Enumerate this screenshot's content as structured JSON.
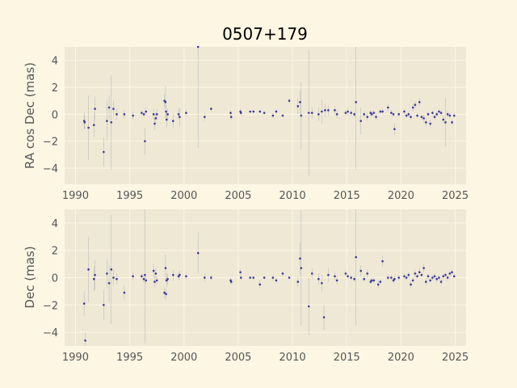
{
  "chart_data": {
    "title": "0507+179",
    "type": "scatter",
    "xlim": [
      1989.0,
      2026.0
    ],
    "x_ticks": [
      1990,
      1995,
      2000,
      2005,
      2010,
      2015,
      2020,
      2025
    ],
    "grid": true,
    "colors": {
      "background": "#fdf6e3",
      "axes": "#eee8d5",
      "points": "#3a3a99",
      "errorbars": "#9a9aa6"
    },
    "panels": [
      {
        "name": "ra-panel",
        "ylabel": "RA cos Dec (mas)",
        "ylim": [
          -5.2,
          5.0
        ],
        "y_ticks": [
          -4,
          -2,
          0,
          2,
          4
        ],
        "points": [
          {
            "x": 1990.8,
            "y": -0.5,
            "e": 0.6
          },
          {
            "x": 1990.85,
            "y": -0.6,
            "e": 0.5
          },
          {
            "x": 1991.2,
            "y": -1.0,
            "e": 2.4
          },
          {
            "x": 1991.7,
            "y": -0.8,
            "e": 0.9
          },
          {
            "x": 1991.8,
            "y": 0.4,
            "e": 0.9
          },
          {
            "x": 1992.6,
            "y": -2.8,
            "e": 1.1
          },
          {
            "x": 1992.9,
            "y": -0.5,
            "e": 1.5
          },
          {
            "x": 1993.1,
            "y": 0.5,
            "e": 0.9
          },
          {
            "x": 1993.3,
            "y": -0.6,
            "e": 3.5
          },
          {
            "x": 1993.5,
            "y": 0.4,
            "e": 0.6
          },
          {
            "x": 1993.8,
            "y": 0.0,
            "e": 0.4
          },
          {
            "x": 1994.5,
            "y": 0.0,
            "e": 0.3
          },
          {
            "x": 1995.3,
            "y": -0.1,
            "e": 0.3
          },
          {
            "x": 1996.1,
            "y": 0.1,
            "e": 0.2
          },
          {
            "x": 1996.3,
            "y": 0.0,
            "e": 0.2
          },
          {
            "x": 1996.4,
            "y": -2.0,
            "e": 1.0
          },
          {
            "x": 1996.5,
            "y": 0.2,
            "e": 0.3
          },
          {
            "x": 1997.2,
            "y": 0.0,
            "e": 0.4
          },
          {
            "x": 1997.3,
            "y": -0.7,
            "e": 0.5
          },
          {
            "x": 1997.4,
            "y": -0.3,
            "e": 0.4
          },
          {
            "x": 1997.5,
            "y": 0.0,
            "e": 0.4
          },
          {
            "x": 1998.2,
            "y": 1.0,
            "e": 0.5
          },
          {
            "x": 1998.3,
            "y": 0.9,
            "e": 1.2
          },
          {
            "x": 1998.35,
            "y": 0.2,
            "e": 0.5
          },
          {
            "x": 1998.4,
            "y": -0.4,
            "e": 0.6
          },
          {
            "x": 1998.5,
            "y": 0.0,
            "e": 0.4
          },
          {
            "x": 1999.0,
            "y": -0.5,
            "e": 0.5
          },
          {
            "x": 1999.5,
            "y": 0.0,
            "e": 0.4
          },
          {
            "x": 1999.6,
            "y": -0.2,
            "e": 0.7
          },
          {
            "x": 2000.2,
            "y": 0.1,
            "e": 0.3
          },
          {
            "x": 2001.3,
            "y": 5.0,
            "e": 7.5
          },
          {
            "x": 2001.9,
            "y": -0.2,
            "e": 0.3
          },
          {
            "x": 2002.5,
            "y": 0.4,
            "e": 0.2
          },
          {
            "x": 2004.3,
            "y": 0.1,
            "e": 0.2
          },
          {
            "x": 2004.35,
            "y": -0.2,
            "e": 0.2
          },
          {
            "x": 2005.2,
            "y": 0.2,
            "e": 0.2
          },
          {
            "x": 2005.25,
            "y": 0.1,
            "e": 0.2
          },
          {
            "x": 2006.1,
            "y": 0.2,
            "e": 0.1
          },
          {
            "x": 2006.4,
            "y": 0.2,
            "e": 0.1
          },
          {
            "x": 2007.0,
            "y": 0.2,
            "e": 0.1
          },
          {
            "x": 2007.4,
            "y": 0.1,
            "e": 0.1
          },
          {
            "x": 2008.2,
            "y": -0.1,
            "e": 0.2
          },
          {
            "x": 2008.5,
            "y": 0.2,
            "e": 0.2
          },
          {
            "x": 2009.1,
            "y": -0.1,
            "e": 0.1
          },
          {
            "x": 2009.7,
            "y": 1.0,
            "e": 0.2
          },
          {
            "x": 2010.5,
            "y": 0.6,
            "e": 0.6
          },
          {
            "x": 2010.7,
            "y": 0.9,
            "e": 0.9
          },
          {
            "x": 2010.8,
            "y": -0.1,
            "e": 2.5
          },
          {
            "x": 2011.5,
            "y": 0.1,
            "e": 4.7
          },
          {
            "x": 2011.8,
            "y": 0.1,
            "e": 0.4
          },
          {
            "x": 2012.4,
            "y": 0.0,
            "e": 0.5
          },
          {
            "x": 2012.7,
            "y": 0.2,
            "e": 0.9
          },
          {
            "x": 2013.0,
            "y": 0.3,
            "e": 0.5
          },
          {
            "x": 2013.3,
            "y": 0.3,
            "e": 0.4
          },
          {
            "x": 2013.9,
            "y": 0.3,
            "e": 0.3
          },
          {
            "x": 2014.1,
            "y": 0.0,
            "e": 0.3
          },
          {
            "x": 2014.9,
            "y": 0.1,
            "e": 0.2
          },
          {
            "x": 2015.1,
            "y": 0.2,
            "e": 0.3
          },
          {
            "x": 2015.4,
            "y": 0.1,
            "e": 0.2
          },
          {
            "x": 2015.7,
            "y": 0.0,
            "e": 0.2
          },
          {
            "x": 2015.85,
            "y": 0.9,
            "e": 5.0
          },
          {
            "x": 2016.3,
            "y": -0.5,
            "e": 1.0
          },
          {
            "x": 2016.6,
            "y": 0.0,
            "e": 0.2
          },
          {
            "x": 2016.9,
            "y": -0.2,
            "e": 0.3
          },
          {
            "x": 2017.2,
            "y": 0.1,
            "e": 0.2
          },
          {
            "x": 2017.3,
            "y": 0.0,
            "e": 0.2
          },
          {
            "x": 2017.5,
            "y": 0.1,
            "e": 0.2
          },
          {
            "x": 2017.7,
            "y": -0.2,
            "e": 0.2
          },
          {
            "x": 2018.1,
            "y": 0.2,
            "e": 0.2
          },
          {
            "x": 2018.3,
            "y": 0.2,
            "e": 0.2
          },
          {
            "x": 2018.8,
            "y": 0.5,
            "e": 0.3
          },
          {
            "x": 2019.1,
            "y": 0.1,
            "e": 0.2
          },
          {
            "x": 2019.3,
            "y": 0.0,
            "e": 0.2
          },
          {
            "x": 2019.4,
            "y": -1.1,
            "e": 0.4
          },
          {
            "x": 2019.8,
            "y": 0.0,
            "e": 0.2
          },
          {
            "x": 2020.3,
            "y": 0.2,
            "e": 0.2
          },
          {
            "x": 2020.5,
            "y": -0.1,
            "e": 0.2
          },
          {
            "x": 2020.7,
            "y": 0.0,
            "e": 0.2
          },
          {
            "x": 2020.9,
            "y": -0.2,
            "e": 0.2
          },
          {
            "x": 2021.1,
            "y": 0.5,
            "e": 0.3
          },
          {
            "x": 2021.3,
            "y": 0.7,
            "e": 0.3
          },
          {
            "x": 2021.5,
            "y": -0.1,
            "e": 0.2
          },
          {
            "x": 2021.7,
            "y": 0.9,
            "e": 0.3
          },
          {
            "x": 2021.9,
            "y": -0.2,
            "e": 0.2
          },
          {
            "x": 2022.1,
            "y": -0.3,
            "e": 0.3
          },
          {
            "x": 2022.3,
            "y": -0.6,
            "e": 0.3
          },
          {
            "x": 2022.5,
            "y": 0.0,
            "e": 0.2
          },
          {
            "x": 2022.7,
            "y": -0.7,
            "e": 0.3
          },
          {
            "x": 2022.9,
            "y": 0.1,
            "e": 0.2
          },
          {
            "x": 2023.1,
            "y": -0.2,
            "e": 0.2
          },
          {
            "x": 2023.3,
            "y": 0.0,
            "e": 0.2
          },
          {
            "x": 2023.5,
            "y": 0.2,
            "e": 0.2
          },
          {
            "x": 2023.7,
            "y": 0.1,
            "e": 0.2
          },
          {
            "x": 2023.9,
            "y": -0.4,
            "e": 0.3
          },
          {
            "x": 2024.1,
            "y": -0.6,
            "e": 1.8
          },
          {
            "x": 2024.3,
            "y": 0.0,
            "e": 0.2
          },
          {
            "x": 2024.5,
            "y": -0.1,
            "e": 0.2
          },
          {
            "x": 2024.7,
            "y": -0.6,
            "e": 0.2
          },
          {
            "x": 2024.9,
            "y": -0.1,
            "e": 0.2
          }
        ]
      },
      {
        "name": "dec-panel",
        "ylabel": "Dec (mas)",
        "ylim": [
          -5.0,
          5.0
        ],
        "y_ticks": [
          -4,
          -2,
          0,
          2,
          4
        ],
        "points": [
          {
            "x": 1990.8,
            "y": -1.9,
            "e": 0.9
          },
          {
            "x": 1990.9,
            "y": -4.6,
            "e": 0.6
          },
          {
            "x": 1991.2,
            "y": 0.6,
            "e": 2.4
          },
          {
            "x": 1991.7,
            "y": -0.1,
            "e": 0.9
          },
          {
            "x": 1991.8,
            "y": 0.2,
            "e": 1.1
          },
          {
            "x": 1992.6,
            "y": -2.0,
            "e": 1.1
          },
          {
            "x": 1992.9,
            "y": 0.3,
            "e": 1.0
          },
          {
            "x": 1993.1,
            "y": -0.4,
            "e": 1.4
          },
          {
            "x": 1993.3,
            "y": 0.6,
            "e": 4.0
          },
          {
            "x": 1993.5,
            "y": 0.0,
            "e": 0.6
          },
          {
            "x": 1993.8,
            "y": -0.1,
            "e": 0.4
          },
          {
            "x": 1994.5,
            "y": -1.1,
            "e": 0.5
          },
          {
            "x": 1995.3,
            "y": 0.1,
            "e": 0.3
          },
          {
            "x": 1996.1,
            "y": 0.1,
            "e": 0.2
          },
          {
            "x": 1996.3,
            "y": -0.1,
            "e": 0.3
          },
          {
            "x": 1996.4,
            "y": 0.2,
            "e": 5.0
          },
          {
            "x": 1996.5,
            "y": -0.2,
            "e": 0.3
          },
          {
            "x": 1997.2,
            "y": 0.5,
            "e": 0.5
          },
          {
            "x": 1997.3,
            "y": -0.3,
            "e": 0.4
          },
          {
            "x": 1997.4,
            "y": 0.3,
            "e": 0.4
          },
          {
            "x": 1997.5,
            "y": -0.2,
            "e": 0.3
          },
          {
            "x": 1998.2,
            "y": -1.1,
            "e": 0.4
          },
          {
            "x": 1998.3,
            "y": 0.7,
            "e": 1.0
          },
          {
            "x": 1998.35,
            "y": -1.2,
            "e": 0.4
          },
          {
            "x": 1998.4,
            "y": -0.2,
            "e": 0.5
          },
          {
            "x": 1998.5,
            "y": -0.1,
            "e": 0.4
          },
          {
            "x": 1999.0,
            "y": 0.2,
            "e": 0.4
          },
          {
            "x": 1999.5,
            "y": 0.1,
            "e": 0.3
          },
          {
            "x": 1999.6,
            "y": 0.2,
            "e": 0.3
          },
          {
            "x": 2000.2,
            "y": 0.1,
            "e": 0.2
          },
          {
            "x": 2001.3,
            "y": 1.8,
            "e": 1.5
          },
          {
            "x": 2001.9,
            "y": 0.0,
            "e": 0.3
          },
          {
            "x": 2002.5,
            "y": 0.0,
            "e": 0.2
          },
          {
            "x": 2004.3,
            "y": -0.2,
            "e": 0.2
          },
          {
            "x": 2004.35,
            "y": -0.3,
            "e": 0.2
          },
          {
            "x": 2005.2,
            "y": 0.4,
            "e": 0.2
          },
          {
            "x": 2005.25,
            "y": 0.0,
            "e": 0.2
          },
          {
            "x": 2006.1,
            "y": 0.0,
            "e": 0.1
          },
          {
            "x": 2006.4,
            "y": 0.0,
            "e": 0.1
          },
          {
            "x": 2007.0,
            "y": -0.5,
            "e": 0.3
          },
          {
            "x": 2007.4,
            "y": 0.0,
            "e": 0.1
          },
          {
            "x": 2008.2,
            "y": 0.0,
            "e": 0.2
          },
          {
            "x": 2008.5,
            "y": -0.2,
            "e": 0.2
          },
          {
            "x": 2009.1,
            "y": 0.3,
            "e": 0.2
          },
          {
            "x": 2009.7,
            "y": 0.0,
            "e": 0.1
          },
          {
            "x": 2010.5,
            "y": -0.3,
            "e": 0.4
          },
          {
            "x": 2010.7,
            "y": 1.4,
            "e": 1.2
          },
          {
            "x": 2010.8,
            "y": 0.7,
            "e": 4.2
          },
          {
            "x": 2011.5,
            "y": -2.1,
            "e": 2.1
          },
          {
            "x": 2011.8,
            "y": 0.3,
            "e": 0.4
          },
          {
            "x": 2012.4,
            "y": -0.1,
            "e": 0.4
          },
          {
            "x": 2012.7,
            "y": -0.4,
            "e": 0.6
          },
          {
            "x": 2012.9,
            "y": -2.9,
            "e": 0.9
          },
          {
            "x": 2013.3,
            "y": 0.2,
            "e": 0.5
          },
          {
            "x": 2013.9,
            "y": 0.1,
            "e": 0.3
          },
          {
            "x": 2014.1,
            "y": -0.2,
            "e": 0.3
          },
          {
            "x": 2014.9,
            "y": 0.3,
            "e": 0.2
          },
          {
            "x": 2015.1,
            "y": 0.1,
            "e": 0.2
          },
          {
            "x": 2015.4,
            "y": 0.0,
            "e": 0.2
          },
          {
            "x": 2015.7,
            "y": -0.1,
            "e": 0.2
          },
          {
            "x": 2015.85,
            "y": 1.5,
            "e": 5.0
          },
          {
            "x": 2016.3,
            "y": 0.5,
            "e": 0.4
          },
          {
            "x": 2016.6,
            "y": -0.1,
            "e": 0.2
          },
          {
            "x": 2016.9,
            "y": 0.3,
            "e": 0.3
          },
          {
            "x": 2017.2,
            "y": -0.3,
            "e": 0.2
          },
          {
            "x": 2017.3,
            "y": -0.2,
            "e": 0.2
          },
          {
            "x": 2017.5,
            "y": -0.2,
            "e": 0.2
          },
          {
            "x": 2017.9,
            "y": -0.5,
            "e": 0.3
          },
          {
            "x": 2018.1,
            "y": -0.3,
            "e": 0.2
          },
          {
            "x": 2018.3,
            "y": 1.2,
            "e": 0.4
          },
          {
            "x": 2018.8,
            "y": 0.0,
            "e": 0.2
          },
          {
            "x": 2019.1,
            "y": 0.0,
            "e": 0.2
          },
          {
            "x": 2019.3,
            "y": -0.2,
            "e": 0.2
          },
          {
            "x": 2019.4,
            "y": -0.1,
            "e": 0.2
          },
          {
            "x": 2019.8,
            "y": 0.0,
            "e": 0.2
          },
          {
            "x": 2020.3,
            "y": 0.1,
            "e": 0.2
          },
          {
            "x": 2020.5,
            "y": 0.0,
            "e": 0.2
          },
          {
            "x": 2020.7,
            "y": 0.2,
            "e": 0.2
          },
          {
            "x": 2020.9,
            "y": -0.5,
            "e": 0.3
          },
          {
            "x": 2021.1,
            "y": -0.2,
            "e": 0.2
          },
          {
            "x": 2021.3,
            "y": 0.3,
            "e": 0.3
          },
          {
            "x": 2021.5,
            "y": 0.1,
            "e": 0.2
          },
          {
            "x": 2021.7,
            "y": 0.4,
            "e": 0.3
          },
          {
            "x": 2021.9,
            "y": 0.2,
            "e": 0.2
          },
          {
            "x": 2022.1,
            "y": 0.7,
            "e": 0.3
          },
          {
            "x": 2022.3,
            "y": -0.3,
            "e": 0.3
          },
          {
            "x": 2022.5,
            "y": 0.1,
            "e": 0.2
          },
          {
            "x": 2022.7,
            "y": -0.2,
            "e": 0.2
          },
          {
            "x": 2022.9,
            "y": 0.0,
            "e": 0.2
          },
          {
            "x": 2023.1,
            "y": 0.1,
            "e": 0.2
          },
          {
            "x": 2023.3,
            "y": -0.1,
            "e": 0.2
          },
          {
            "x": 2023.5,
            "y": 0.0,
            "e": 0.2
          },
          {
            "x": 2023.7,
            "y": -0.3,
            "e": 0.2
          },
          {
            "x": 2023.9,
            "y": 0.1,
            "e": 0.2
          },
          {
            "x": 2024.1,
            "y": 0.2,
            "e": 0.2
          },
          {
            "x": 2024.3,
            "y": 0.0,
            "e": 0.2
          },
          {
            "x": 2024.5,
            "y": 0.3,
            "e": 0.2
          },
          {
            "x": 2024.7,
            "y": 0.4,
            "e": 0.2
          },
          {
            "x": 2024.9,
            "y": 0.1,
            "e": 0.2
          }
        ]
      }
    ]
  }
}
